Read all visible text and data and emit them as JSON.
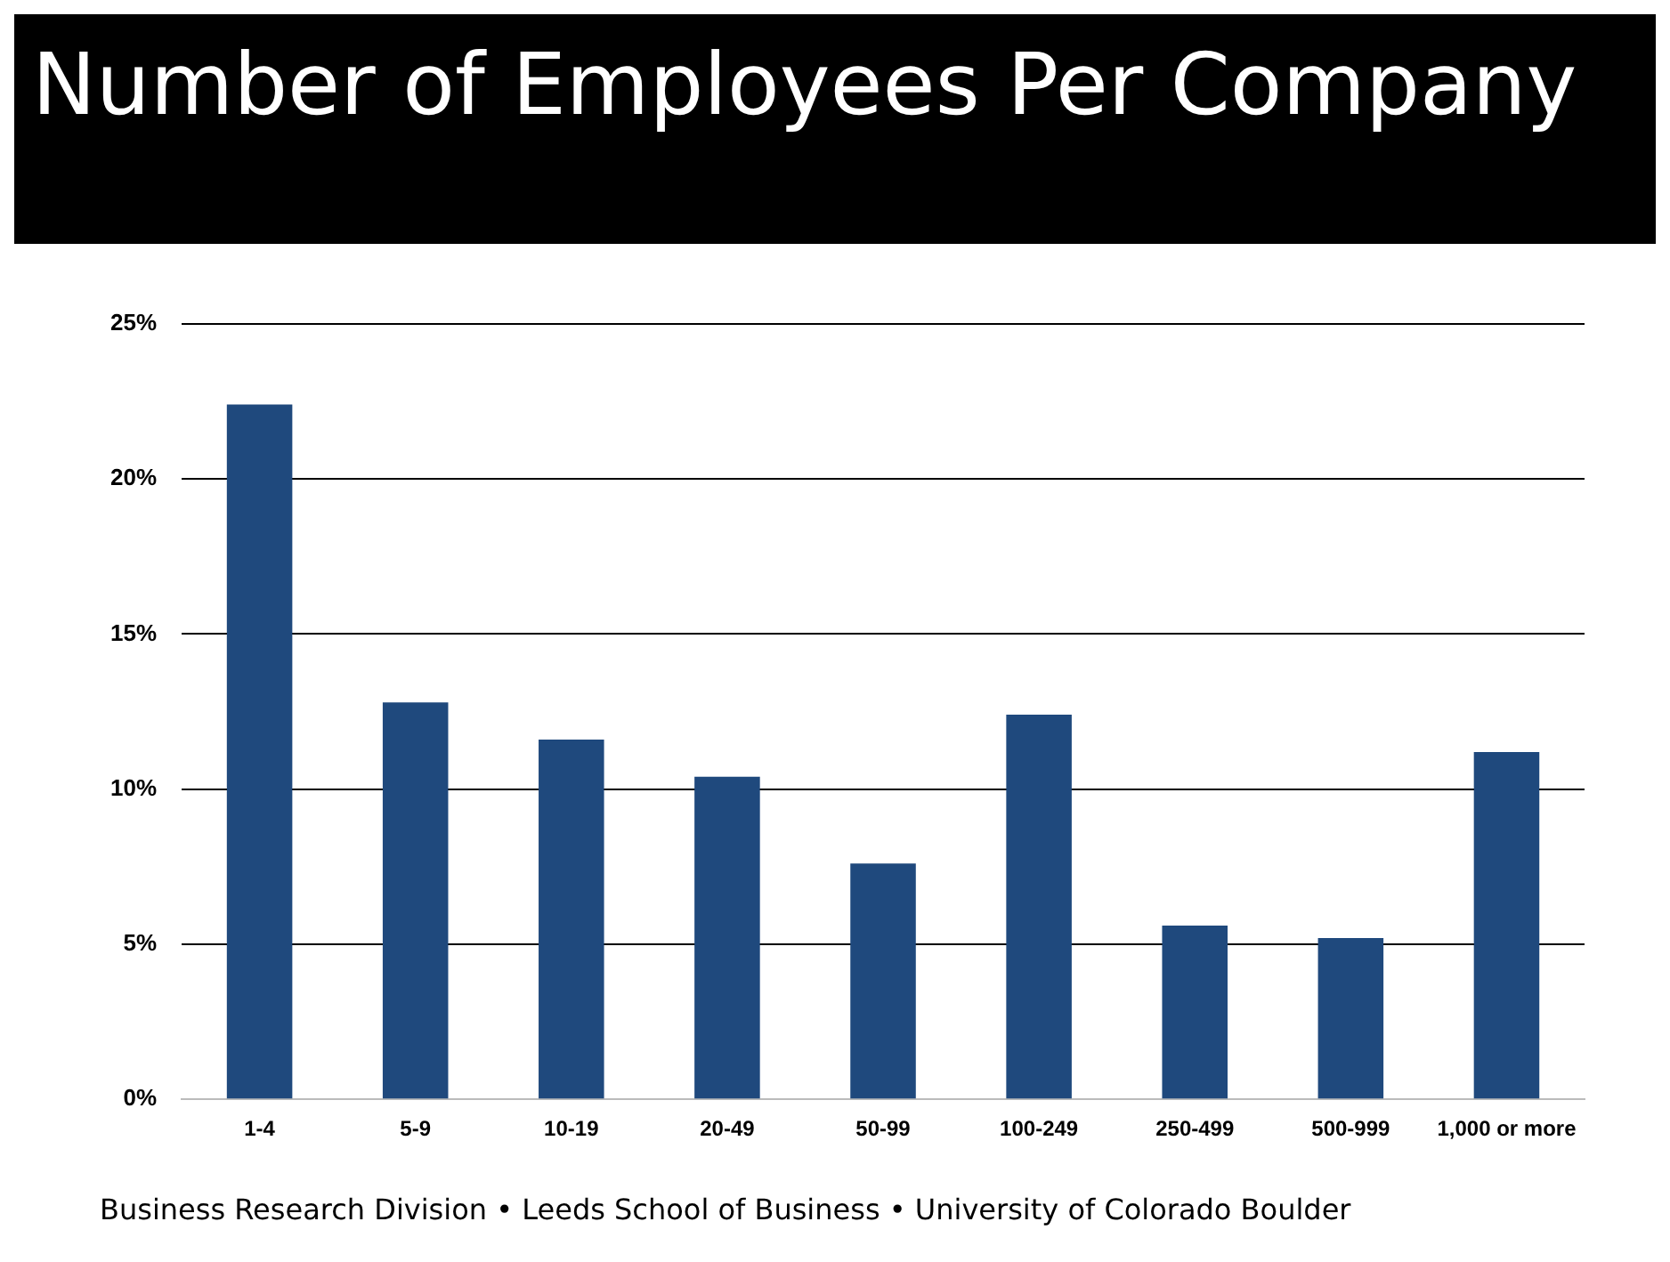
{
  "chart_data": {
    "type": "bar",
    "title": "Number of Employees Per Company",
    "categories": [
      "1-4",
      "5-9",
      "10-19",
      "20-49",
      "50-99",
      "100-249",
      "250-499",
      "500-999",
      "1,000 or more"
    ],
    "values": [
      22.4,
      12.8,
      11.6,
      10.4,
      7.6,
      12.4,
      5.6,
      5.2,
      11.2
    ],
    "color": "#1f497d",
    "ylim": [
      0,
      25
    ],
    "yticks": [
      {
        "value": 0,
        "label": "0%"
      },
      {
        "value": 5,
        "label": "5%"
      },
      {
        "value": 10,
        "label": "10%"
      },
      {
        "value": 15,
        "label": "15%"
      },
      {
        "value": 20,
        "label": "20%"
      },
      {
        "value": 25,
        "label": "25%"
      }
    ],
    "grid": "y",
    "legend": false,
    "annotations": [
      "Business Research Division • Leeds School of Business • University of Colorado Boulder"
    ]
  }
}
